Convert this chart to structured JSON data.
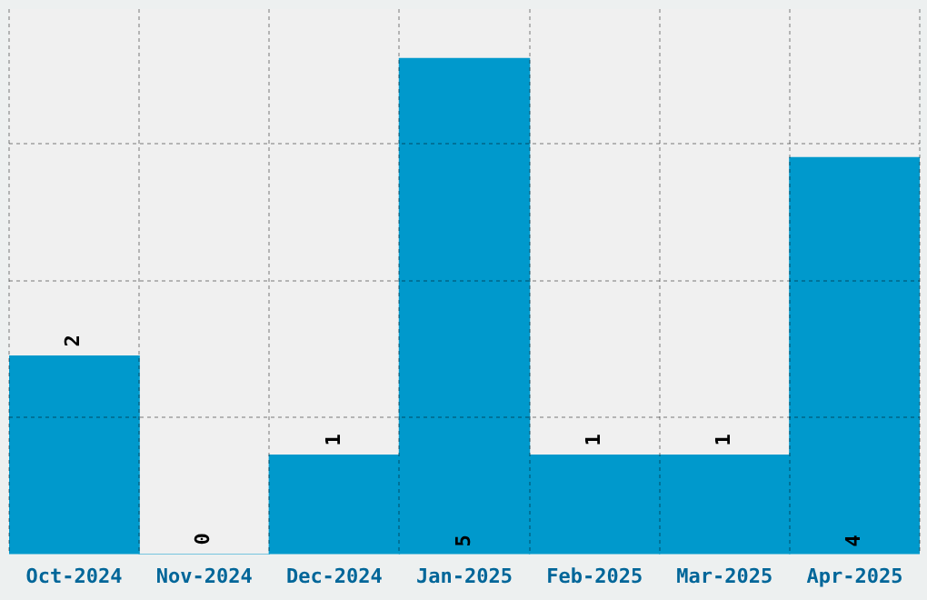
{
  "chart_data": {
    "type": "bar",
    "categories": [
      "Oct-2024",
      "Nov-2024",
      "Dec-2024",
      "Jan-2025",
      "Feb-2025",
      "Mar-2025",
      "Apr-2025"
    ],
    "values": [
      2,
      0,
      1,
      5,
      1,
      1,
      4
    ],
    "color": "#0099cc",
    "ylim": [
      0,
      5.5
    ],
    "yticks": [
      {
        "value": 1.38,
        "label": null
      },
      {
        "value": 2.76,
        "label": null
      },
      {
        "value": 4.14,
        "label": null
      }
    ],
    "tick_labels": "x",
    "grid": true,
    "data_labels": true,
    "legend": false
  }
}
